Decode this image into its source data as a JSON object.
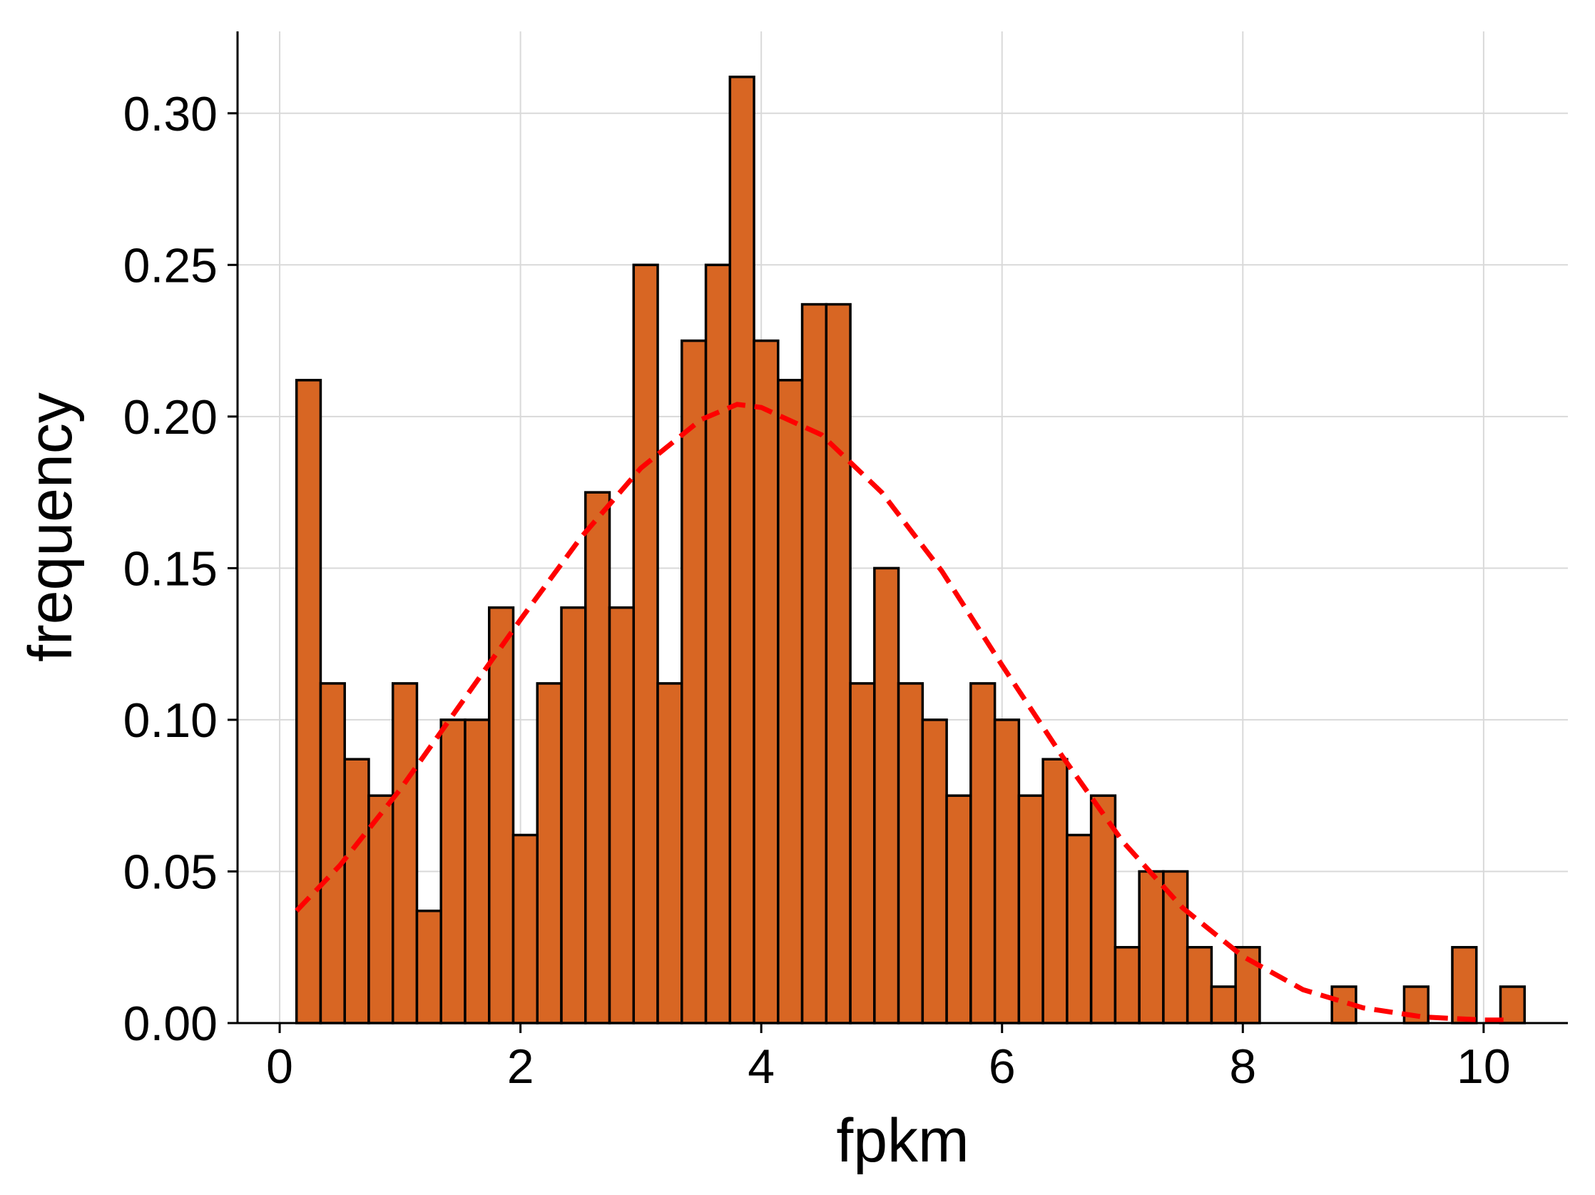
{
  "chart_data": {
    "type": "bar",
    "subtype": "histogram-with-fitted-curve",
    "title": "",
    "xlabel": "fpkm",
    "ylabel": "frequency",
    "xlim": [
      -0.35,
      10.7
    ],
    "ylim": [
      0,
      0.327
    ],
    "xticks": [
      0,
      2,
      4,
      6,
      8,
      10
    ],
    "xtick_labels": [
      "0",
      "2",
      "4",
      "6",
      "8",
      "10"
    ],
    "yticks": [
      0,
      0.05,
      0.1,
      0.15,
      0.2,
      0.25,
      0.3
    ],
    "ytick_labels": [
      "0.00",
      "0.05",
      "0.10",
      "0.15",
      "0.20",
      "0.25",
      "0.30"
    ],
    "grid": true,
    "bin_start": 0.14,
    "bin_width": 0.2,
    "values": [
      0.212,
      0.112,
      0.087,
      0.075,
      0.112,
      0.037,
      0.1,
      0.1,
      0.137,
      0.062,
      0.112,
      0.137,
      0.175,
      0.137,
      0.25,
      0.112,
      0.225,
      0.25,
      0.312,
      0.225,
      0.212,
      0.237,
      0.237,
      0.112,
      0.15,
      0.112,
      0.1,
      0.075,
      0.112,
      0.1,
      0.075,
      0.087,
      0.062,
      0.075,
      0.025,
      0.05,
      0.05,
      0.025,
      0.012,
      0.025,
      0,
      0,
      0,
      0.012,
      0,
      0,
      0.012,
      0,
      0.025,
      0,
      0.012
    ],
    "fitted_curve": {
      "style": "dashed",
      "color": "#ff0000",
      "x": [
        0.14,
        0.5,
        1.0,
        1.5,
        2.0,
        2.5,
        3.0,
        3.5,
        3.8,
        4.0,
        4.5,
        5.0,
        5.5,
        6.0,
        6.5,
        7.0,
        7.5,
        8.0,
        8.5,
        9.0,
        9.5,
        10.0,
        10.24
      ],
      "y": [
        0.037,
        0.052,
        0.077,
        0.105,
        0.133,
        0.16,
        0.183,
        0.199,
        0.204,
        0.203,
        0.194,
        0.175,
        0.149,
        0.118,
        0.088,
        0.06,
        0.038,
        0.022,
        0.011,
        0.005,
        0.002,
        0.001,
        0.001
      ]
    },
    "colors": {
      "bar_fill": "#d86623",
      "bar_stroke": "#000000",
      "grid": "#d9d9d9",
      "axis": "#000000",
      "curve": "#ff0000"
    }
  }
}
